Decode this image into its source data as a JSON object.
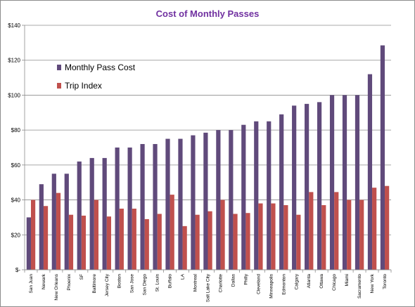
{
  "chart_data": {
    "type": "bar",
    "title": "Cost of Monthly Passes",
    "xlabel": "",
    "ylabel": "",
    "ylim": [
      0,
      140
    ],
    "yticks": [
      0,
      20,
      40,
      60,
      80,
      100,
      120,
      140
    ],
    "ytick_labels": [
      "$-",
      "$20",
      "$40",
      "$60",
      "$80",
      "$100",
      "$120",
      "$140"
    ],
    "grid": true,
    "legend_position": "top-left",
    "categories": [
      "San Juan",
      "Newark",
      "New Orleans",
      "Phoenix",
      "SF",
      "Baltimore",
      "Jersey City",
      "Boston",
      "San Jose",
      "San Diego",
      "St. Louis",
      "Buffalo",
      "LA",
      "Montreal",
      "Salt Lake City",
      "Charlotte",
      "Dallas",
      "Philly",
      "Cleveland",
      "Minneapolis",
      "Edmonton",
      "Calgary",
      "Atlanta",
      "Ottawa",
      "Chicago",
      "Miami",
      "Sacramento",
      "New York",
      "Toronto"
    ],
    "series": [
      {
        "name": "Monthly Pass Cost",
        "color": "#604a7b",
        "values": [
          30,
          49,
          55,
          55,
          62,
          64,
          64,
          70,
          70,
          72,
          72,
          75,
          75,
          77,
          78.5,
          80,
          80,
          83,
          85,
          85,
          89,
          94,
          95,
          96,
          100,
          100,
          100,
          112,
          128.5
        ]
      },
      {
        "name": "Trip Index",
        "color": "#c0504d",
        "values": [
          40,
          36.5,
          44,
          31.5,
          31,
          40,
          30.5,
          35,
          35,
          29,
          32,
          43,
          25,
          31.5,
          33.5,
          40,
          32,
          32.5,
          38,
          38,
          37,
          31.5,
          44.5,
          37,
          44.5,
          40,
          40,
          47,
          48
        ]
      }
    ]
  }
}
